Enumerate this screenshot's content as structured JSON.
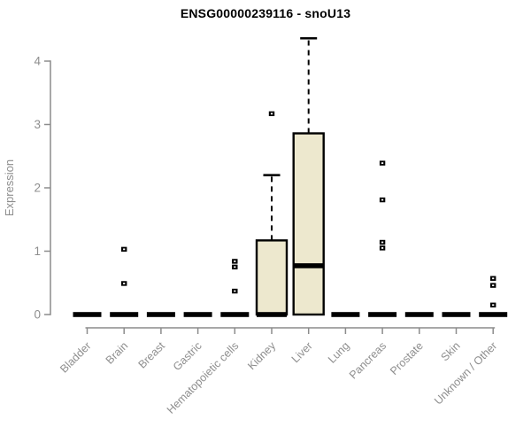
{
  "title": "ENSG00000239116 - snoU13",
  "chart_data": {
    "type": "boxplot",
    "title": "ENSG00000239116 - snoU13",
    "xlabel": "",
    "ylabel": "Expression",
    "ylim": [
      0,
      4.4
    ],
    "yticks": [
      "0",
      "1",
      "2",
      "3",
      "4"
    ],
    "grid": false,
    "legend": null,
    "categories": [
      "Bladder",
      "Brain",
      "Breast",
      "Gastric",
      "Hematopoietic cells",
      "Kidney",
      "Liver",
      "Lung",
      "Pancreas",
      "Prostate",
      "Skin",
      "Unknown / Other"
    ],
    "boxes": [
      {
        "category": "Bladder",
        "whisker_low": 0,
        "q1": 0,
        "median": 0,
        "q3": 0,
        "whisker_high": 0,
        "outliers": []
      },
      {
        "category": "Brain",
        "whisker_low": 0,
        "q1": 0,
        "median": 0,
        "q3": 0,
        "whisker_high": 0,
        "outliers": [
          0.49,
          1.03
        ]
      },
      {
        "category": "Breast",
        "whisker_low": 0,
        "q1": 0,
        "median": 0,
        "q3": 0,
        "whisker_high": 0,
        "outliers": []
      },
      {
        "category": "Gastric",
        "whisker_low": 0,
        "q1": 0,
        "median": 0,
        "q3": 0,
        "whisker_high": 0,
        "outliers": []
      },
      {
        "category": "Hematopoietic cells",
        "whisker_low": 0,
        "q1": 0,
        "median": 0,
        "q3": 0,
        "whisker_high": 0,
        "outliers": [
          0.37,
          0.75,
          0.84
        ]
      },
      {
        "category": "Kidney",
        "whisker_low": 0,
        "q1": 0,
        "median": 0,
        "q3": 1.17,
        "whisker_high": 2.2,
        "outliers": [
          3.17
        ]
      },
      {
        "category": "Liver",
        "whisker_low": 0,
        "q1": 0,
        "median": 0.77,
        "q3": 2.86,
        "whisker_high": 4.36,
        "outliers": []
      },
      {
        "category": "Lung",
        "whisker_low": 0,
        "q1": 0,
        "median": 0,
        "q3": 0,
        "whisker_high": 0,
        "outliers": []
      },
      {
        "category": "Pancreas",
        "whisker_low": 0,
        "q1": 0,
        "median": 0,
        "q3": 0,
        "whisker_high": 0,
        "outliers": [
          1.05,
          1.14,
          1.81,
          2.39
        ]
      },
      {
        "category": "Prostate",
        "whisker_low": 0,
        "q1": 0,
        "median": 0,
        "q3": 0,
        "whisker_high": 0,
        "outliers": []
      },
      {
        "category": "Skin",
        "whisker_low": 0,
        "q1": 0,
        "median": 0,
        "q3": 0,
        "whisker_high": 0,
        "outliers": []
      },
      {
        "category": "Unknown / Other",
        "whisker_low": 0,
        "q1": 0,
        "median": 0,
        "q3": 0,
        "whisker_high": 0,
        "outliers": [
          0.15,
          0.46,
          0.57
        ]
      }
    ],
    "colors": {
      "background": "#FFFFFF",
      "box_fill": "#EDE8CE",
      "box_border": "#000000",
      "median": "#000000",
      "whisker": "#000000",
      "outlier": "#000000",
      "axis_line": "#8C8C8C",
      "tick_label": "#8E8E8E",
      "title": "#000000"
    }
  }
}
